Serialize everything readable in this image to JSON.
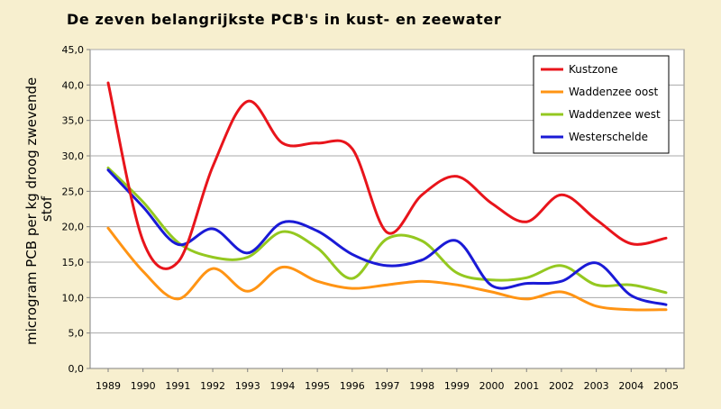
{
  "title": "De zeven belangrijkste PCB's in kust- en zeewater",
  "colors": {
    "background": "#f7efcf",
    "plot_area": "#ffffff",
    "grid": "#a8a8a8"
  },
  "chart_data": {
    "type": "line",
    "title": "De zeven belangrijkste PCB's in kust- en zeewater",
    "xlabel": "",
    "ylabel_lines": [
      "microgram PCB per kg droog zwevende",
      "stof"
    ],
    "x": [
      1989,
      1990,
      1991,
      1992,
      1993,
      1994,
      1995,
      1996,
      1997,
      1998,
      1999,
      2000,
      2001,
      2002,
      2003,
      2004,
      2005
    ],
    "x_tick_labels": [
      "1989",
      "1990",
      "1991",
      "1992",
      "1993",
      "1994",
      "1995",
      "1996",
      "1997",
      "1998",
      "1999",
      "2000",
      "2001",
      "2002",
      "2003",
      "2004",
      "2005"
    ],
    "ylim": [
      0,
      45
    ],
    "y_ticks": [
      0,
      5,
      10,
      15,
      20,
      25,
      30,
      35,
      40,
      45
    ],
    "y_tick_labels": [
      "0,0",
      "5,0",
      "10,0",
      "15,0",
      "20,0",
      "25,0",
      "30,0",
      "35,0",
      "40,0",
      "45,0"
    ],
    "grid": true,
    "legend_position": "top-right",
    "series": [
      {
        "name": "Kustzone",
        "color": "#e8141b",
        "values": [
          40.3,
          18.0,
          15.0,
          28.5,
          37.7,
          31.8,
          31.8,
          31.0,
          19.2,
          24.5,
          27.1,
          23.3,
          20.7,
          24.5,
          21.0,
          17.6,
          18.4
        ]
      },
      {
        "name": "Waddenzee oost",
        "color": "#ff9414",
        "values": [
          19.8,
          13.7,
          9.8,
          14.1,
          10.9,
          14.3,
          12.3,
          11.3,
          11.8,
          12.3,
          11.8,
          10.8,
          9.8,
          10.8,
          8.8,
          8.3,
          8.3
        ]
      },
      {
        "name": "Waddenzee west",
        "color": "#94c820",
        "values": [
          28.3,
          23.5,
          17.8,
          15.7,
          15.7,
          19.3,
          17.0,
          12.7,
          18.3,
          18.0,
          13.5,
          12.5,
          12.8,
          14.5,
          11.8,
          11.8,
          10.7
        ]
      },
      {
        "name": "Westerschelde",
        "color": "#1a1ad6",
        "values": [
          28.0,
          22.8,
          17.5,
          19.7,
          16.3,
          20.6,
          19.4,
          16.1,
          14.5,
          15.3,
          18.0,
          11.7,
          12.0,
          12.3,
          14.9,
          10.3,
          9.0
        ]
      }
    ]
  }
}
